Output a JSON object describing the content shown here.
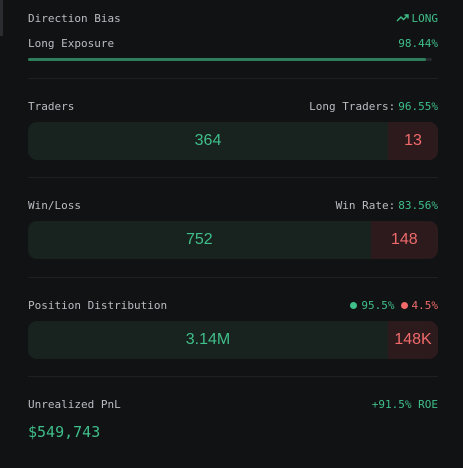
{
  "direction_bias": {
    "label": "Direction Bias",
    "value": "LONG"
  },
  "long_exposure": {
    "label": "Long Exposure",
    "value": 98.44,
    "value_label": "98.44%"
  },
  "traders": {
    "label": "Traders",
    "stat_label": "Long Traders:",
    "stat_value": "96.55%",
    "long": 364,
    "short": 13
  },
  "win_loss": {
    "label": "Win/Loss",
    "stat_label": "Win Rate:",
    "stat_value": "83.56%",
    "wins": 752,
    "losses": 148
  },
  "position_distribution": {
    "label": "Position Distribution",
    "long_share": "95.5%",
    "short_share": "4.5%",
    "long": 3140000,
    "long_label": "3.14M",
    "short": 148000,
    "short_label": "148K"
  },
  "unrealized_pnl": {
    "label": "Unrealized PnL",
    "roe": "+91.5% ROE",
    "value": "$549,743"
  }
}
